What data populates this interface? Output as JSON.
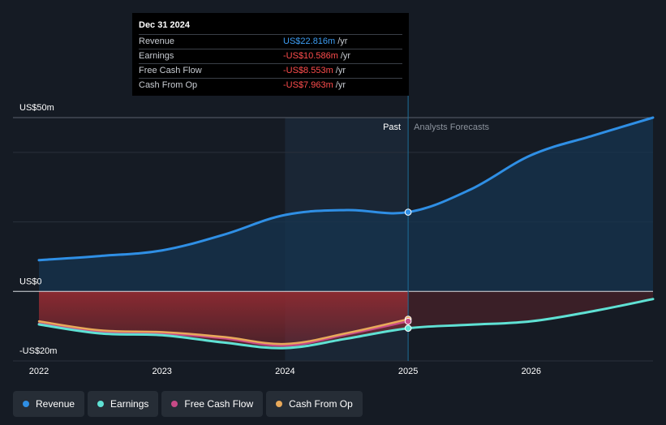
{
  "tooltip": {
    "date": "Dec 31 2024",
    "rows": [
      {
        "label": "Revenue",
        "value": "US$22.816m",
        "unit": "/yr",
        "sign": "pos"
      },
      {
        "label": "Earnings",
        "value": "-US$10.586m",
        "unit": "/yr",
        "sign": "neg"
      },
      {
        "label": "Free Cash Flow",
        "value": "-US$8.553m",
        "unit": "/yr",
        "sign": "neg"
      },
      {
        "label": "Cash From Op",
        "value": "-US$7.963m",
        "unit": "/yr",
        "sign": "neg"
      }
    ]
  },
  "periods": {
    "past": "Past",
    "forecast": "Analysts Forecasts"
  },
  "legend": [
    {
      "label": "Revenue",
      "color": "#2f8fe5"
    },
    {
      "label": "Earnings",
      "color": "#5fe1d4"
    },
    {
      "label": "Free Cash Flow",
      "color": "#c74a87"
    },
    {
      "label": "Cash From Op",
      "color": "#e8a95a"
    }
  ],
  "colors": {
    "revenue": "#2f8fe5",
    "earnings": "#5fe1d4",
    "fcf": "#c74a87",
    "cfo": "#e8a95a",
    "negative_fill_past": "#8a2a31",
    "negative_fill_forecast": "#3a1f27",
    "positive_fill": "#16344f"
  },
  "chart_data": {
    "type": "area",
    "title": "",
    "xlabel": "",
    "ylabel": "",
    "xlim": [
      2022.0,
      2026.99
    ],
    "ylim": [
      -20,
      50
    ],
    "y_ticks": [
      {
        "value": 50,
        "label": "US$50m"
      },
      {
        "value": 0,
        "label": "US$0"
      },
      {
        "value": -20,
        "label": "-US$20m"
      }
    ],
    "gridlines": [
      50,
      40,
      20,
      0,
      -20
    ],
    "x_ticks": [
      {
        "value": 2022,
        "label": "2022"
      },
      {
        "value": 2023,
        "label": "2023"
      },
      {
        "value": 2024,
        "label": "2024"
      },
      {
        "value": 2025,
        "label": "2025"
      },
      {
        "value": 2026,
        "label": "2026"
      }
    ],
    "highlight_range": [
      2024.0,
      2025.0
    ],
    "divider_x": 2025.0,
    "series": [
      {
        "name": "Revenue",
        "key": "revenue",
        "points": [
          [
            2022.0,
            9.0
          ],
          [
            2022.5,
            10.2
          ],
          [
            2023.0,
            11.8
          ],
          [
            2023.5,
            16.3
          ],
          [
            2024.0,
            22.0
          ],
          [
            2024.5,
            23.4
          ],
          [
            2025.0,
            22.8
          ],
          [
            2025.5,
            29.2
          ],
          [
            2026.0,
            39.2
          ],
          [
            2026.5,
            44.8
          ],
          [
            2026.99,
            50.0
          ]
        ]
      },
      {
        "name": "Earnings",
        "key": "earnings",
        "points": [
          [
            2022.0,
            -9.5
          ],
          [
            2022.5,
            -12.1
          ],
          [
            2023.0,
            -12.6
          ],
          [
            2023.5,
            -14.7
          ],
          [
            2024.0,
            -16.3
          ],
          [
            2024.5,
            -13.6
          ],
          [
            2025.0,
            -10.6
          ],
          [
            2025.5,
            -9.6
          ],
          [
            2026.0,
            -8.6
          ],
          [
            2026.5,
            -5.7
          ],
          [
            2026.99,
            -2.2
          ]
        ]
      },
      {
        "name": "Free Cash Flow",
        "key": "fcf",
        "points": [
          [
            2022.0,
            -9.2
          ],
          [
            2022.5,
            -11.6
          ],
          [
            2023.0,
            -12.1
          ],
          [
            2023.5,
            -13.5
          ],
          [
            2024.0,
            -15.6
          ],
          [
            2024.5,
            -12.4
          ],
          [
            2025.0,
            -8.6
          ]
        ]
      },
      {
        "name": "Cash From Op",
        "key": "cfo",
        "points": [
          [
            2022.0,
            -8.6
          ],
          [
            2022.5,
            -11.2
          ],
          [
            2023.0,
            -11.7
          ],
          [
            2023.5,
            -13.1
          ],
          [
            2024.0,
            -15.1
          ],
          [
            2024.5,
            -12.0
          ],
          [
            2025.0,
            -8.0
          ]
        ]
      }
    ]
  }
}
